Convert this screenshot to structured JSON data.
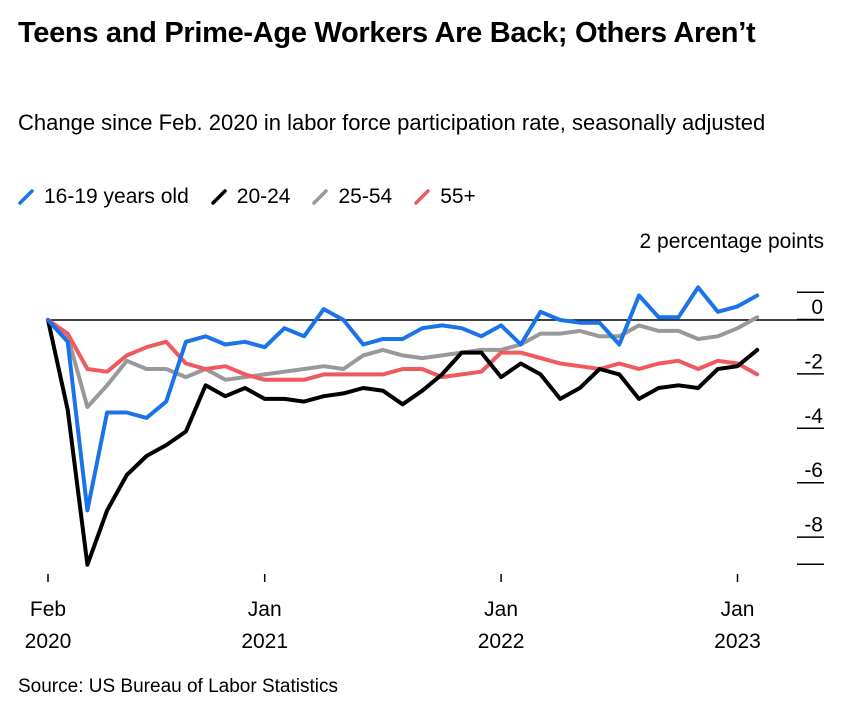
{
  "chart_data": {
    "type": "line",
    "title": "Teens and Prime-Age Workers Are Back; Others Aren’t",
    "subtitle": "Change since Feb. 2020 in labor force participation rate, seasonally adjusted",
    "unit_label": "2 percentage points",
    "source": "Source: US Bureau of Labor Statistics",
    "legend_position": "top-left",
    "grid": false,
    "ylim": [
      -9,
      2
    ],
    "y_ticks": [
      0,
      -2,
      -4,
      -6,
      -8
    ],
    "y_tick_labels": [
      "0",
      "-2",
      "-4",
      "-6",
      "-8"
    ],
    "x_start": "2020-02",
    "x_tick_labels": [
      {
        "month_index": 0,
        "line1": "Feb",
        "line2": "2020"
      },
      {
        "month_index": 11,
        "line1": "Jan",
        "line2": "2021"
      },
      {
        "month_index": 23,
        "line1": "Jan",
        "line2": "2022"
      },
      {
        "month_index": 35,
        "line1": "Jan",
        "line2": "2023"
      }
    ],
    "series": [
      {
        "name": "16-19 years old",
        "color": "#1a73e8",
        "values": [
          0,
          -0.8,
          -7.0,
          -3.4,
          -3.4,
          -3.6,
          -3.0,
          -0.8,
          -0.6,
          -0.9,
          -0.8,
          -1.0,
          -0.3,
          -0.6,
          0.4,
          0.0,
          -0.9,
          -0.7,
          -0.7,
          -0.3,
          -0.2,
          -0.3,
          -0.6,
          -0.2,
          -0.9,
          0.3,
          0.0,
          -0.1,
          -0.1,
          -0.9,
          0.9,
          0.1,
          0.1,
          1.2,
          0.3,
          0.5,
          0.9
        ]
      },
      {
        "name": "20-24",
        "color": "#000000",
        "values": [
          0,
          -3.3,
          -9.0,
          -7.0,
          -5.7,
          -5.0,
          -4.6,
          -4.1,
          -2.4,
          -2.8,
          -2.5,
          -2.9,
          -2.9,
          -3.0,
          -2.8,
          -2.7,
          -2.5,
          -2.6,
          -3.1,
          -2.6,
          -2.0,
          -1.2,
          -1.2,
          -2.1,
          -1.6,
          -2.0,
          -2.9,
          -2.5,
          -1.8,
          -2.0,
          -2.9,
          -2.5,
          -2.4,
          -2.5,
          -1.8,
          -1.7,
          -1.1
        ]
      },
      {
        "name": "25-54",
        "color": "#999999",
        "values": [
          0,
          -0.6,
          -3.2,
          -2.4,
          -1.5,
          -1.8,
          -1.8,
          -2.1,
          -1.8,
          -2.2,
          -2.1,
          -2.0,
          -1.9,
          -1.8,
          -1.7,
          -1.8,
          -1.3,
          -1.1,
          -1.3,
          -1.4,
          -1.3,
          -1.2,
          -1.1,
          -1.1,
          -0.9,
          -0.5,
          -0.5,
          -0.4,
          -0.6,
          -0.6,
          -0.2,
          -0.4,
          -0.4,
          -0.7,
          -0.6,
          -0.3,
          0.1
        ]
      },
      {
        "name": "55+",
        "color": "#f05a5f",
        "values": [
          0,
          -0.5,
          -1.8,
          -1.9,
          -1.3,
          -1.0,
          -0.8,
          -1.6,
          -1.8,
          -1.7,
          -2.0,
          -2.2,
          -2.2,
          -2.2,
          -2.0,
          -2.0,
          -2.0,
          -2.0,
          -1.8,
          -1.8,
          -2.1,
          -2.0,
          -1.9,
          -1.2,
          -1.2,
          -1.4,
          -1.6,
          -1.7,
          -1.8,
          -1.6,
          -1.8,
          -1.6,
          -1.5,
          -1.8,
          -1.5,
          -1.6,
          -2.0
        ]
      }
    ]
  }
}
